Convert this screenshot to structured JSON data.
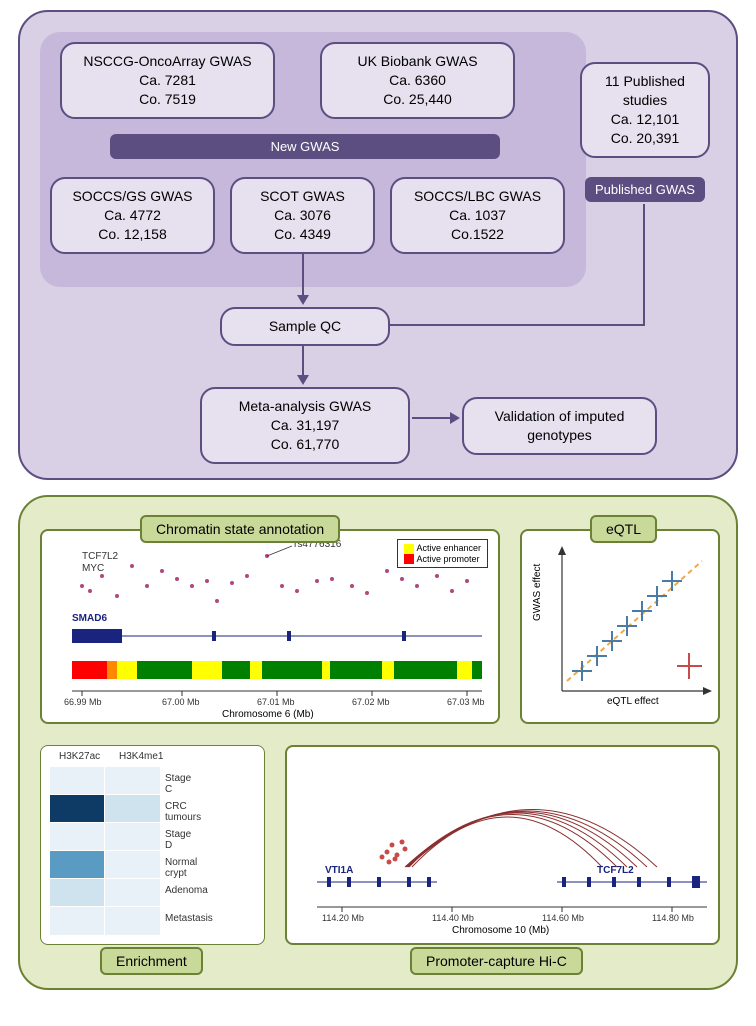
{
  "top": {
    "bg_color": "#d9d0e6",
    "border_color": "#5d4e82",
    "inner_bg": "#c5b8da",
    "box_bg": "#e6e0ef",
    "band_bg": "#5d4e82",
    "boxes": {
      "nsccg": {
        "l1": "NSCCG-OncoArray GWAS",
        "l2": "Ca. 7281",
        "l3": "Co. 7519"
      },
      "ukbb": {
        "l1": "UK Biobank GWAS",
        "l2": "Ca. 6360",
        "l3": "Co. 25,440"
      },
      "pub": {
        "l1": "11 Published",
        "l2": "studies",
        "l3": "Ca. 12,101",
        "l4": "Co. 20,391"
      },
      "soccs_gs": {
        "l1": "SOCCS/GS GWAS",
        "l2": "Ca. 4772",
        "l3": "Co. 12,158"
      },
      "scot": {
        "l1": "SCOT GWAS",
        "l2": "Ca. 3076",
        "l3": "Co. 4349"
      },
      "soccs_lbc": {
        "l1": "SOCCS/LBC GWAS",
        "l2": "Ca. 1037",
        "l3": "Co.1522"
      },
      "sampleqc": {
        "l1": "Sample QC"
      },
      "meta": {
        "l1": "Meta-analysis GWAS",
        "l2": "Ca. 31,197",
        "l3": "Co. 61,770"
      },
      "validation": {
        "l1": "Validation of imputed",
        "l2": "genotypes"
      }
    },
    "bands": {
      "new_gwas": "New GWAS",
      "pub_gwas": "Published GWAS"
    }
  },
  "bottom": {
    "bg_color": "#e4ebc9",
    "border_color": "#6b8235",
    "sub_bg": "#ffffff",
    "label_bg": "#c9d99a",
    "labels": {
      "chromatin": "Chromatin state annotation",
      "eqtl": "eQTL",
      "enrichment": "Enrichment",
      "hic": "Promoter-capture Hi-C"
    },
    "chromatin": {
      "gene_tf": "TCF7L2",
      "gene_myc": "MYC",
      "rs": "rs4776316",
      "gene_smad": "SMAD6",
      "legend": {
        "yellow": "Active enhancer",
        "red": "Active promoter"
      },
      "xlabel": "Chromosome 6 (Mb)",
      "ticks": [
        "66.99 Mb",
        "67.00 Mb",
        "67.01 Mb",
        "67.02 Mb",
        "67.03 Mb"
      ],
      "colors": {
        "enhancer": "#ffff00",
        "promoter": "#ff0000",
        "track_green": "#008000",
        "points": "#b2477d",
        "gene": "#1a237e"
      }
    },
    "eqtl": {
      "ylabel": "GWAS effect",
      "xlabel": "eQTL effect",
      "colors": {
        "cross_blue": "#4a7ba6",
        "cross_red": "#c94a4a",
        "dash": "#e8a94f"
      }
    },
    "heatmap": {
      "cols": [
        "H3K27ac",
        "H3K4me1"
      ],
      "rows": [
        "Stage C",
        "CRC tumours",
        "Stage D",
        "Normal crypt",
        "Adenoma",
        "Metastasis"
      ],
      "colors": {
        "dark": "#0d3b66",
        "mid": "#5a9bc4",
        "light": "#cfe3ef",
        "pale": "#e8f1f7"
      },
      "cells": [
        [
          "pale",
          "pale"
        ],
        [
          "dark",
          "light"
        ],
        [
          "pale",
          "pale"
        ],
        [
          "mid",
          "pale"
        ],
        [
          "light",
          "pale"
        ],
        [
          "pale",
          "pale"
        ]
      ]
    },
    "hic": {
      "gene1": "VTI1A",
      "gene2": "TCF7L2",
      "xlabel": "Chromosome 10 (Mb)",
      "ticks": [
        "114.20 Mb",
        "114.40 Mb",
        "114.60 Mb",
        "114.80 Mb"
      ],
      "colors": {
        "arc": "#8b2e2e",
        "points": "#c94a4a",
        "gene": "#1a237e"
      }
    }
  }
}
